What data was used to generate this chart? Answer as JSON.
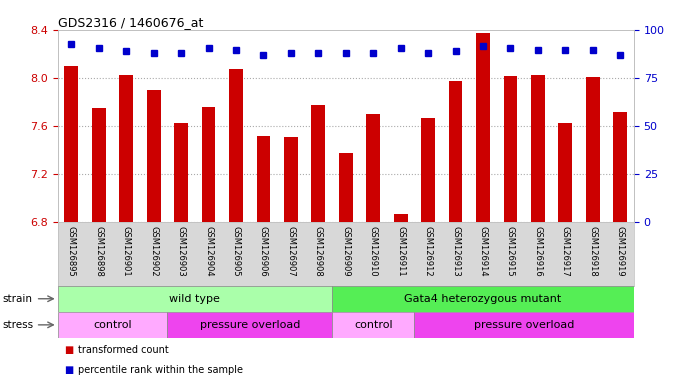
{
  "title": "GDS2316 / 1460676_at",
  "samples": [
    "GSM126895",
    "GSM126898",
    "GSM126901",
    "GSM126902",
    "GSM126903",
    "GSM126904",
    "GSM126905",
    "GSM126906",
    "GSM126907",
    "GSM126908",
    "GSM126909",
    "GSM126910",
    "GSM126911",
    "GSM126912",
    "GSM126913",
    "GSM126914",
    "GSM126915",
    "GSM126916",
    "GSM126917",
    "GSM126918",
    "GSM126919"
  ],
  "red_values": [
    8.1,
    7.75,
    8.03,
    7.9,
    7.63,
    7.76,
    8.08,
    7.52,
    7.51,
    7.78,
    7.38,
    7.7,
    6.87,
    7.67,
    7.98,
    8.38,
    8.02,
    8.03,
    7.63,
    8.01,
    7.72
  ],
  "blue_values": [
    93,
    91,
    89,
    88,
    88,
    91,
    90,
    87,
    88,
    88,
    88,
    88,
    91,
    88,
    89,
    92,
    91,
    90,
    90,
    90,
    87
  ],
  "ylim_left": [
    6.8,
    8.4
  ],
  "ylim_right": [
    0,
    100
  ],
  "yticks_left": [
    6.8,
    7.2,
    7.6,
    8.0,
    8.4
  ],
  "yticks_right": [
    0,
    25,
    50,
    75,
    100
  ],
  "bar_color": "#cc0000",
  "dot_color": "#0000cc",
  "background_color": "#ffffff",
  "plot_bg_color": "#ffffff",
  "strain_groups": [
    {
      "label": "wild type",
      "start": 0,
      "end": 10,
      "color": "#aaffaa"
    },
    {
      "label": "Gata4 heterozygous mutant",
      "start": 10,
      "end": 21,
      "color": "#55ee55"
    }
  ],
  "stress_groups": [
    {
      "label": "control",
      "start": 0,
      "end": 4,
      "color": "#ffaaff"
    },
    {
      "label": "pressure overload",
      "start": 4,
      "end": 10,
      "color": "#ee44ee"
    },
    {
      "label": "control",
      "start": 10,
      "end": 13,
      "color": "#ffaaff"
    },
    {
      "label": "pressure overload",
      "start": 13,
      "end": 21,
      "color": "#ee44ee"
    }
  ],
  "legend_items": [
    {
      "label": "transformed count",
      "color": "#cc0000"
    },
    {
      "label": "percentile rank within the sample",
      "color": "#0000cc"
    }
  ],
  "dotted_line_color": "#aaaaaa",
  "tick_label_color_left": "#cc0000",
  "tick_label_color_right": "#0000cc",
  "xtick_bg_color": "#d8d8d8"
}
